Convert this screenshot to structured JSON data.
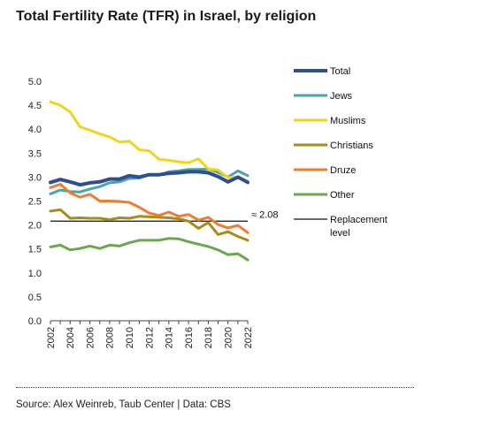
{
  "title": "Total Fertility Rate (TFR) in Israel, by religion",
  "source": "Source: Alex Weinreb, Taub Center | Data: CBS",
  "chart_data": {
    "type": "line",
    "title": "Total Fertility Rate (TFR) in Israel, by religion",
    "xlabel": "",
    "ylabel": "",
    "ylim": [
      0,
      5
    ],
    "yticks": [
      "0.0",
      "0.5",
      "1.0",
      "1.5",
      "2.0",
      "2.5",
      "3.0",
      "3.5",
      "4.0",
      "4.5",
      "5.0"
    ],
    "xticks": [
      "2002",
      "2004",
      "2006",
      "2008",
      "2010",
      "2012",
      "2014",
      "2016",
      "2018",
      "2020",
      "2022"
    ],
    "x": [
      2002,
      2003,
      2004,
      2005,
      2006,
      2007,
      2008,
      2009,
      2010,
      2011,
      2012,
      2013,
      2014,
      2015,
      2016,
      2017,
      2018,
      2019,
      2020,
      2021,
      2022
    ],
    "grid": false,
    "legend_position": "right",
    "series": [
      {
        "name": "Total",
        "color": "#2e4f8f",
        "width": 4,
        "values": [
          2.89,
          2.95,
          2.9,
          2.84,
          2.88,
          2.9,
          2.96,
          2.96,
          3.03,
          3.0,
          3.05,
          3.05,
          3.08,
          3.09,
          3.11,
          3.11,
          3.09,
          3.01,
          2.9,
          3.0,
          2.89
        ]
      },
      {
        "name": "Jews",
        "color": "#4aa3ad",
        "width": 3,
        "values": [
          2.65,
          2.73,
          2.7,
          2.69,
          2.75,
          2.8,
          2.88,
          2.9,
          2.97,
          2.98,
          3.05,
          3.04,
          3.11,
          3.13,
          3.16,
          3.16,
          3.17,
          3.1,
          3.0,
          3.13,
          3.03
        ]
      },
      {
        "name": "Muslims",
        "color": "#f2d41a",
        "width": 3,
        "values": [
          4.57,
          4.5,
          4.36,
          4.05,
          3.98,
          3.9,
          3.84,
          3.73,
          3.75,
          3.57,
          3.55,
          3.37,
          3.35,
          3.32,
          3.3,
          3.38,
          3.17,
          3.15,
          2.99,
          3.0,
          2.91
        ]
      },
      {
        "name": "Christians",
        "color": "#a78b1c",
        "width": 3,
        "values": [
          2.29,
          2.32,
          2.14,
          2.15,
          2.14,
          2.14,
          2.11,
          2.15,
          2.14,
          2.18,
          2.17,
          2.16,
          2.15,
          2.13,
          2.08,
          1.93,
          2.05,
          1.8,
          1.86,
          1.76,
          1.68
        ]
      },
      {
        "name": "Druze",
        "color": "#f07c2e",
        "width": 3,
        "values": [
          2.78,
          2.85,
          2.67,
          2.58,
          2.64,
          2.5,
          2.5,
          2.49,
          2.47,
          2.37,
          2.25,
          2.2,
          2.27,
          2.18,
          2.22,
          2.1,
          2.16,
          2.01,
          1.94,
          1.99,
          1.84
        ]
      },
      {
        "name": "Other",
        "color": "#6aa84f",
        "width": 3,
        "values": [
          1.54,
          1.58,
          1.48,
          1.51,
          1.56,
          1.51,
          1.58,
          1.56,
          1.63,
          1.68,
          1.68,
          1.68,
          1.72,
          1.71,
          1.65,
          1.6,
          1.55,
          1.48,
          1.38,
          1.4,
          1.27
        ]
      }
    ],
    "reference_line": {
      "name": "Replacement level",
      "value": 2.08,
      "annotation": "≈ 2.08",
      "color": "#111111"
    }
  }
}
